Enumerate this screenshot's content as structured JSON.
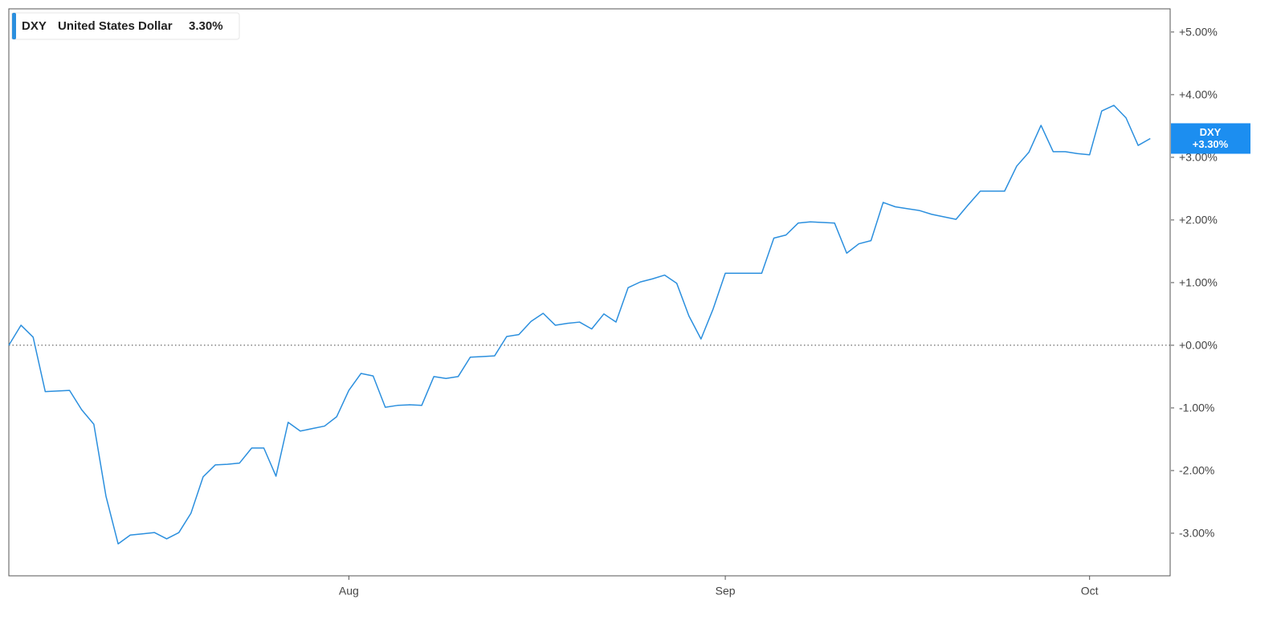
{
  "chart_data": {
    "type": "line",
    "categories": [
      null,
      null,
      null,
      null,
      null,
      null,
      null,
      null,
      null,
      null,
      null,
      null,
      null,
      null,
      null,
      null,
      null,
      null,
      null,
      null,
      null,
      null,
      null,
      null,
      null,
      null,
      null,
      null,
      "Aug",
      null,
      null,
      null,
      null,
      null,
      null,
      null,
      null,
      null,
      null,
      null,
      null,
      null,
      null,
      null,
      null,
      null,
      null,
      null,
      null,
      null,
      null,
      null,
      null,
      null,
      null,
      null,
      null,
      null,
      null,
      "Sep",
      null,
      null,
      null,
      null,
      null,
      null,
      null,
      null,
      null,
      null,
      null,
      null,
      null,
      null,
      null,
      null,
      null,
      null,
      null,
      null,
      null,
      null,
      null,
      null,
      null,
      null,
      null,
      null,
      null,
      "Oct",
      null,
      null,
      null,
      null,
      null
    ],
    "series": [
      {
        "name": "DXY",
        "description": "United States Dollar",
        "legend_value": "3.30%",
        "tag_value": "+3.30%",
        "color": "#2b8fde",
        "tag_color": "#1c8ef0",
        "values": [
          0.0,
          0.32,
          0.13,
          -0.74,
          -0.73,
          -0.72,
          -1.03,
          -1.26,
          -2.41,
          -3.17,
          -3.03,
          -3.01,
          -2.99,
          -3.09,
          -2.99,
          -2.68,
          -2.1,
          -1.91,
          -1.9,
          -1.88,
          -1.64,
          -1.64,
          -2.09,
          -1.23,
          -1.37,
          -1.33,
          -1.29,
          -1.14,
          -0.72,
          -0.45,
          -0.49,
          -0.99,
          -0.96,
          -0.95,
          -0.96,
          -0.5,
          -0.53,
          -0.5,
          -0.19,
          -0.18,
          -0.17,
          0.14,
          0.17,
          0.38,
          0.51,
          0.32,
          0.35,
          0.37,
          0.26,
          0.5,
          0.37,
          0.92,
          1.01,
          1.06,
          1.12,
          0.99,
          0.47,
          0.1,
          0.58,
          1.15,
          1.15,
          1.15,
          1.15,
          1.71,
          1.76,
          1.95,
          1.97,
          1.96,
          1.95,
          1.47,
          1.62,
          1.67,
          2.28,
          2.21,
          2.18,
          2.15,
          2.09,
          2.05,
          2.01,
          2.24,
          2.46,
          2.46,
          2.46,
          2.86,
          3.08,
          3.51,
          3.09,
          3.09,
          3.06,
          3.04,
          3.74,
          3.83,
          3.63,
          3.19,
          3.3
        ]
      }
    ],
    "ylim": [
      -3.68,
      5.37
    ],
    "yticks": [
      {
        "value": -3,
        "label": "-3.00%"
      },
      {
        "value": -2,
        "label": "-2.00%"
      },
      {
        "value": -1,
        "label": "-1.00%"
      },
      {
        "value": 0,
        "label": "+0.00%"
      },
      {
        "value": 1,
        "label": "+1.00%"
      },
      {
        "value": 2,
        "label": "+2.00%"
      },
      {
        "value": 3,
        "label": "+3.00%"
      },
      {
        "value": 4,
        "label": "+4.00%"
      },
      {
        "value": 5,
        "label": "+5.00%"
      }
    ],
    "reference_line": 0,
    "grid": false,
    "legend": "top-left"
  }
}
